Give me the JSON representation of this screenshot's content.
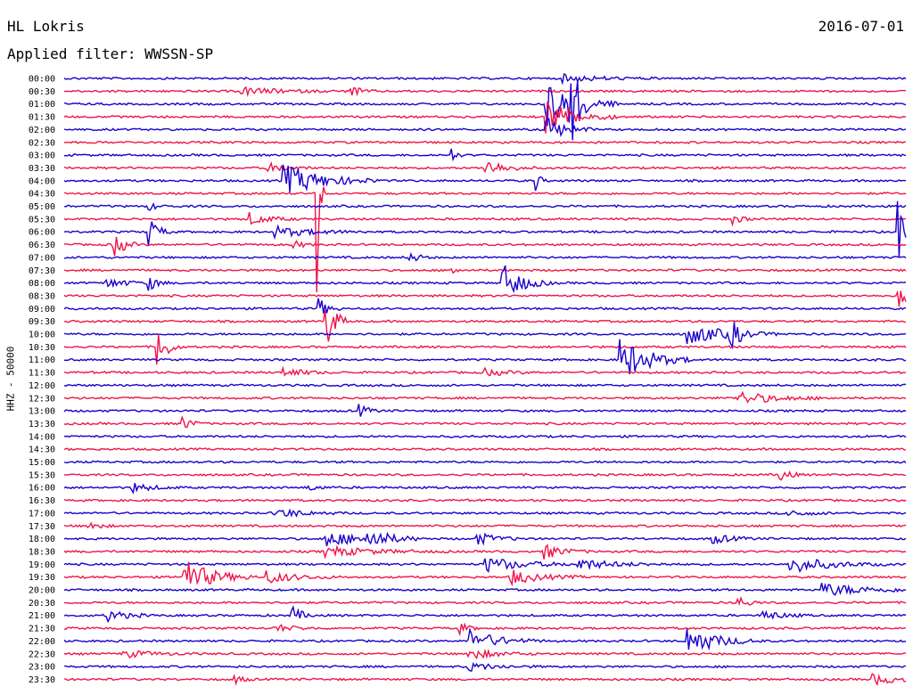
{
  "header": {
    "station": "HL Lokris",
    "date": "2016-07-01",
    "filter": "Applied filter: WWSSN-SP"
  },
  "axis": {
    "ylabel": "HHZ - 50000"
  },
  "colors": {
    "even": "#1a00cc",
    "odd": "#f0144a"
  },
  "chart_data": {
    "type": "line",
    "title": "",
    "xlabel": "",
    "ylabel": "HHZ - 50000",
    "rows": [
      {
        "label": "00:00",
        "events": [
          {
            "t": 0.59,
            "a": 0.3,
            "d": 0.04
          }
        ]
      },
      {
        "label": "00:30",
        "events": [
          {
            "t": 0.21,
            "a": 0.3,
            "d": 0.04
          },
          {
            "t": 0.34,
            "a": 0.5,
            "d": 0.01
          }
        ]
      },
      {
        "label": "01:00",
        "events": [
          {
            "t": 0.57,
            "a": 2.0,
            "d": 0.03
          },
          {
            "t": 0.6,
            "a": 3.5,
            "d": 0.01
          }
        ]
      },
      {
        "label": "01:30",
        "events": [
          {
            "t": 0.57,
            "a": 1.5,
            "d": 0.03
          }
        ]
      },
      {
        "label": "02:00",
        "events": [
          {
            "t": 0.57,
            "a": 1.2,
            "d": 0.02
          }
        ]
      },
      {
        "label": "02:30",
        "events": []
      },
      {
        "label": "03:00",
        "events": [
          {
            "t": 0.46,
            "a": 0.6,
            "d": 0.005
          }
        ]
      },
      {
        "label": "03:30",
        "events": [
          {
            "t": 0.24,
            "a": 0.4,
            "d": 0.02
          },
          {
            "t": 0.5,
            "a": 0.7,
            "d": 0.02
          }
        ]
      },
      {
        "label": "04:00",
        "events": [
          {
            "t": 0.26,
            "a": 1.3,
            "d": 0.04
          },
          {
            "t": 0.56,
            "a": 0.8,
            "d": 0.005
          }
        ]
      },
      {
        "label": "04:30",
        "events": [
          {
            "t": 0.3,
            "a": 8.0,
            "d": 0.003
          }
        ]
      },
      {
        "label": "05:00",
        "events": [
          {
            "t": 0.1,
            "a": 0.3,
            "d": 0.01
          }
        ]
      },
      {
        "label": "05:30",
        "events": [
          {
            "t": 0.22,
            "a": 0.5,
            "d": 0.02
          },
          {
            "t": 0.79,
            "a": 0.6,
            "d": 0.01
          }
        ]
      },
      {
        "label": "06:00",
        "events": [
          {
            "t": 0.1,
            "a": 1.2,
            "d": 0.01
          },
          {
            "t": 0.25,
            "a": 0.4,
            "d": 0.04
          },
          {
            "t": 0.99,
            "a": 2.5,
            "d": 0.02
          }
        ]
      },
      {
        "label": "06:30",
        "events": [
          {
            "t": 0.06,
            "a": 1.0,
            "d": 0.01
          },
          {
            "t": 0.27,
            "a": 0.4,
            "d": 0.01
          }
        ]
      },
      {
        "label": "07:00",
        "events": [
          {
            "t": 0.41,
            "a": 0.5,
            "d": 0.01
          }
        ]
      },
      {
        "label": "07:30",
        "events": [
          {
            "t": 0.46,
            "a": 0.5,
            "d": 0.005
          }
        ]
      },
      {
        "label": "08:00",
        "events": [
          {
            "t": 0.05,
            "a": 0.4,
            "d": 0.02
          },
          {
            "t": 0.1,
            "a": 0.6,
            "d": 0.01
          },
          {
            "t": 0.52,
            "a": 1.6,
            "d": 0.02
          }
        ]
      },
      {
        "label": "08:30",
        "events": [
          {
            "t": 0.99,
            "a": 1.2,
            "d": 0.02
          }
        ]
      },
      {
        "label": "09:00",
        "events": [
          {
            "t": 0.3,
            "a": 1.0,
            "d": 0.01
          }
        ]
      },
      {
        "label": "09:30",
        "events": [
          {
            "t": 0.31,
            "a": 2.5,
            "d": 0.01
          }
        ]
      },
      {
        "label": "10:00",
        "events": [
          {
            "t": 0.74,
            "a": 0.8,
            "d": 0.04
          },
          {
            "t": 0.79,
            "a": 1.3,
            "d": 0.01
          }
        ]
      },
      {
        "label": "10:30",
        "events": [
          {
            "t": 0.11,
            "a": 2.0,
            "d": 0.01
          }
        ]
      },
      {
        "label": "11:00",
        "events": [
          {
            "t": 0.66,
            "a": 1.8,
            "d": 0.03
          }
        ]
      },
      {
        "label": "11:30",
        "events": [
          {
            "t": 0.26,
            "a": 0.4,
            "d": 0.02
          },
          {
            "t": 0.5,
            "a": 0.3,
            "d": 0.02
          }
        ]
      },
      {
        "label": "12:00",
        "events": []
      },
      {
        "label": "12:30",
        "events": [
          {
            "t": 0.8,
            "a": 0.5,
            "d": 0.04
          }
        ]
      },
      {
        "label": "13:00",
        "events": [
          {
            "t": 0.35,
            "a": 0.5,
            "d": 0.01
          }
        ]
      },
      {
        "label": "13:30",
        "events": [
          {
            "t": 0.14,
            "a": 0.6,
            "d": 0.01
          }
        ]
      },
      {
        "label": "14:00",
        "events": []
      },
      {
        "label": "14:30",
        "events": []
      },
      {
        "label": "15:00",
        "events": []
      },
      {
        "label": "15:30",
        "events": [
          {
            "t": 0.85,
            "a": 0.6,
            "d": 0.01
          }
        ]
      },
      {
        "label": "16:00",
        "events": [
          {
            "t": 0.08,
            "a": 0.4,
            "d": 0.02
          },
          {
            "t": 0.29,
            "a": 0.3,
            "d": 0.01
          }
        ]
      },
      {
        "label": "16:30",
        "events": []
      },
      {
        "label": "17:00",
        "events": [
          {
            "t": 0.25,
            "a": 0.4,
            "d": 0.03
          },
          {
            "t": 0.86,
            "a": 0.3,
            "d": 0.02
          }
        ]
      },
      {
        "label": "17:30",
        "events": [
          {
            "t": 0.03,
            "a": 0.4,
            "d": 0.01
          }
        ]
      },
      {
        "label": "18:00",
        "events": [
          {
            "t": 0.31,
            "a": 0.6,
            "d": 0.04
          },
          {
            "t": 0.36,
            "a": 0.8,
            "d": 0.02
          },
          {
            "t": 0.49,
            "a": 0.5,
            "d": 0.02
          },
          {
            "t": 0.77,
            "a": 0.4,
            "d": 0.02
          }
        ]
      },
      {
        "label": "18:30",
        "events": [
          {
            "t": 0.31,
            "a": 0.4,
            "d": 0.05
          },
          {
            "t": 0.57,
            "a": 0.6,
            "d": 0.02
          }
        ]
      },
      {
        "label": "19:00",
        "events": [
          {
            "t": 0.5,
            "a": 0.6,
            "d": 0.04
          },
          {
            "t": 0.61,
            "a": 0.4,
            "d": 0.04
          },
          {
            "t": 0.86,
            "a": 0.7,
            "d": 0.04
          }
        ]
      },
      {
        "label": "19:30",
        "events": [
          {
            "t": 0.14,
            "a": 1.5,
            "d": 0.03
          },
          {
            "t": 0.24,
            "a": 0.5,
            "d": 0.03
          },
          {
            "t": 0.53,
            "a": 0.6,
            "d": 0.03
          }
        ]
      },
      {
        "label": "20:00",
        "events": [
          {
            "t": 0.9,
            "a": 0.5,
            "d": 0.05
          }
        ]
      },
      {
        "label": "20:30",
        "events": [
          {
            "t": 0.8,
            "a": 0.6,
            "d": 0.01
          }
        ]
      },
      {
        "label": "21:00",
        "events": [
          {
            "t": 0.05,
            "a": 0.5,
            "d": 0.02
          },
          {
            "t": 0.27,
            "a": 0.8,
            "d": 0.01
          },
          {
            "t": 0.83,
            "a": 0.4,
            "d": 0.02
          }
        ]
      },
      {
        "label": "21:30",
        "events": [
          {
            "t": 0.25,
            "a": 0.3,
            "d": 0.02
          },
          {
            "t": 0.47,
            "a": 0.4,
            "d": 0.01
          }
        ]
      },
      {
        "label": "22:00",
        "events": [
          {
            "t": 0.48,
            "a": 0.9,
            "d": 0.03
          },
          {
            "t": 0.74,
            "a": 1.2,
            "d": 0.03
          }
        ]
      },
      {
        "label": "22:30",
        "events": [
          {
            "t": 0.07,
            "a": 0.3,
            "d": 0.03
          },
          {
            "t": 0.48,
            "a": 0.4,
            "d": 0.03
          }
        ]
      },
      {
        "label": "23:00",
        "events": [
          {
            "t": 0.48,
            "a": 0.3,
            "d": 0.03
          }
        ]
      },
      {
        "label": "23:30",
        "events": [
          {
            "t": 0.2,
            "a": 0.4,
            "d": 0.01
          },
          {
            "t": 0.96,
            "a": 0.4,
            "d": 0.03
          }
        ]
      }
    ]
  }
}
